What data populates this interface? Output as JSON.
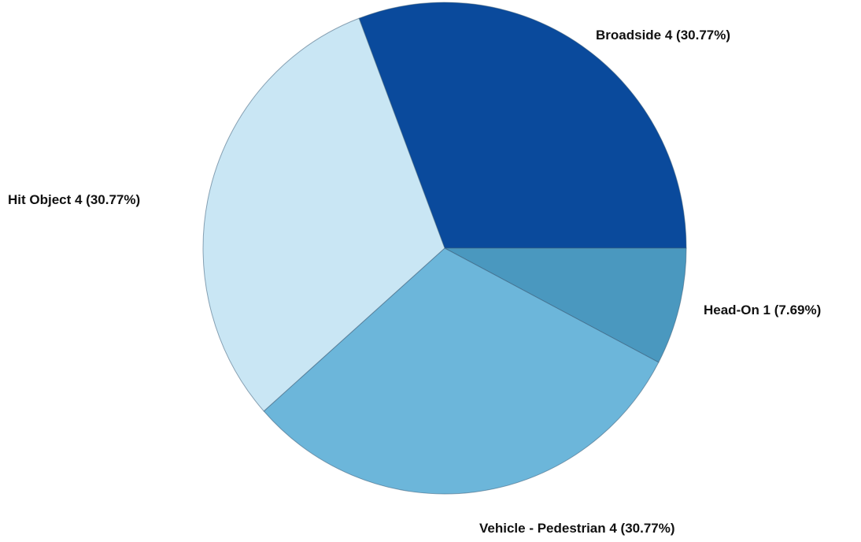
{
  "chart_data": {
    "type": "pie",
    "title": "",
    "slices": [
      {
        "label": "Broadside",
        "value": 4,
        "percent": "30.77%",
        "color": "#0a4a9c"
      },
      {
        "label": "Head-On",
        "value": 1,
        "percent": "7.69%",
        "color": "#4a98bf"
      },
      {
        "label": "Vehicle - Pedestrian",
        "value": 4,
        "percent": "30.77%",
        "color": "#6cb6da"
      },
      {
        "label": "Hit Object",
        "value": 4,
        "percent": "30.77%",
        "color": "#c9e6f4"
      }
    ],
    "start_angle_deg": -90,
    "start_offset_slices": 3,
    "direction": "clockwise",
    "legend": "none",
    "labels_position": "outside"
  }
}
